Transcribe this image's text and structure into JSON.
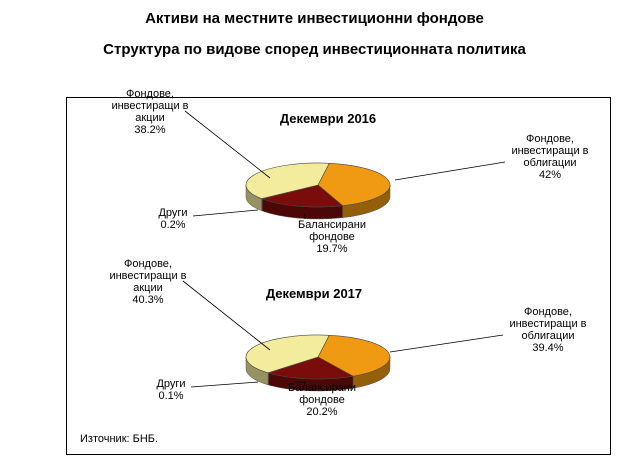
{
  "title_line1": "Активи на местните инвестиционни фондове",
  "title_line2": "Структура по видове според инвестиционната политика",
  "source": "Източник: БНБ.",
  "colors": {
    "bonds": "#ef9a12",
    "balanced": "#7a0c0c",
    "stocks": "#f3ec9c",
    "other": "#c9c9c9"
  },
  "chart_data": [
    {
      "type": "pie",
      "title": "Декември 2016",
      "slices": [
        {
          "key": "bonds",
          "label": [
            "Фондове,",
            "инвестиращи в",
            "облигации"
          ],
          "value_label": "42%",
          "value": 42.0
        },
        {
          "key": "balanced",
          "label": [
            "Балансирани",
            "фондове"
          ],
          "value_label": "19.7%",
          "value": 19.7
        },
        {
          "key": "other",
          "label": [
            "Други"
          ],
          "value_label": "0.2%",
          "value": 0.2
        },
        {
          "key": "stocks",
          "label": [
            "Фондове,",
            "инвестиращи в",
            "акции"
          ],
          "value_label": "38.2%",
          "value": 38.2
        }
      ]
    },
    {
      "type": "pie",
      "title": "Декември 2017",
      "slices": [
        {
          "key": "bonds",
          "label": [
            "Фондове,",
            "инвестиращи в",
            "облигации"
          ],
          "value_label": "39.4%",
          "value": 39.4
        },
        {
          "key": "balanced",
          "label": [
            "Балансирани",
            "фондове"
          ],
          "value_label": "20.2%",
          "value": 20.2
        },
        {
          "key": "other",
          "label": [
            "Други"
          ],
          "value_label": "0.1%",
          "value": 0.1
        },
        {
          "key": "stocks",
          "label": [
            "Фондове,",
            "инвестиращи в",
            "акции"
          ],
          "value_label": "40.3%",
          "value": 40.3
        }
      ]
    }
  ]
}
